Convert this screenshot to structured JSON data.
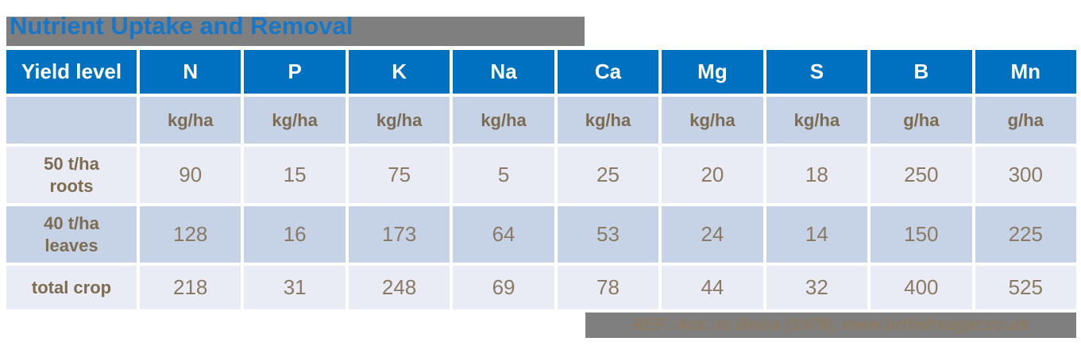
{
  "title": "Nutrient Uptake and Removal",
  "colors": {
    "header_blue": "#0070c0",
    "title_blue": "#1777c9",
    "bar_gray": "#7f7f7f",
    "row_light": "#e9ecf4",
    "row_dark": "#c6d3e7",
    "text_brown": "#7c6c52",
    "number_brown": "#8a7a64"
  },
  "display": {
    "row_labels": [
      "50 t/ha\nroots",
      "40 t/ha\nleaves",
      "total crop"
    ]
  },
  "chart_data": {
    "type": "table",
    "title": "Nutrient Uptake and Removal",
    "columns": [
      "Yield level",
      "N",
      "P",
      "K",
      "Na",
      "Ca",
      "Mg",
      "S",
      "B",
      "Mn"
    ],
    "units": [
      "",
      "kg/ha",
      "kg/ha",
      "kg/ha",
      "kg/ha",
      "kg/ha",
      "kg/ha",
      "kg/ha",
      "g/ha",
      "g/ha"
    ],
    "rows": [
      {
        "label": "50 t/ha roots",
        "values": [
          90,
          15,
          75,
          5,
          25,
          20,
          18,
          250,
          300
        ]
      },
      {
        "label": "40 t/ha leaves",
        "values": [
          128,
          16,
          173,
          64,
          53,
          24,
          14,
          150,
          225
        ]
      },
      {
        "label": "total crop",
        "values": [
          218,
          31,
          248,
          69,
          78,
          44,
          32,
          400,
          525
        ]
      }
    ],
    "footnote": "REF: Acc. to Beiss (1978), www.britishsugar.co.uk"
  }
}
